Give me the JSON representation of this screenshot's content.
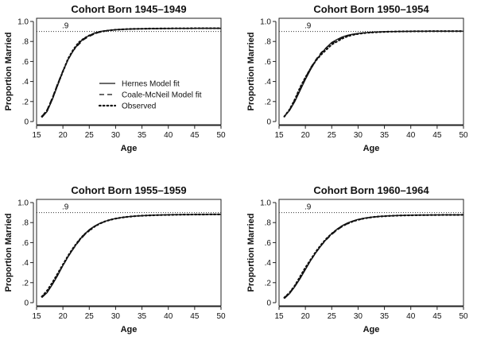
{
  "chart_data": [
    {
      "type": "line",
      "title": "Cohort Born 1945–1949",
      "xlabel": "Age",
      "ylabel": "Proportion Married",
      "xlim": [
        15,
        50
      ],
      "ylim": [
        0,
        1.0
      ],
      "x_ticks": [
        15,
        20,
        25,
        30,
        35,
        40,
        45,
        50
      ],
      "x_tick_labels": [
        "15",
        "20",
        "25",
        "30",
        "35",
        "40",
        "45",
        "50"
      ],
      "y_ticks": [
        0,
        0.2,
        0.4,
        0.6,
        0.8,
        1.0
      ],
      "y_tick_labels": [
        "0",
        ".2",
        ".4",
        ".6",
        ".8",
        "1.0"
      ],
      "reference_line": {
        "y": 0.9,
        "label": ".9"
      },
      "legend": {
        "position": "center-right",
        "entries": [
          {
            "label": "Hernes Model fit",
            "style": "solid"
          },
          {
            "label": "Coale-McNeil Model fit",
            "style": "dashed"
          },
          {
            "label": "Observed",
            "style": "dotted"
          }
        ]
      },
      "x": [
        16,
        17,
        18,
        19,
        20,
        21,
        22,
        23,
        24,
        25,
        26,
        27,
        28,
        29,
        30,
        31,
        32,
        33,
        34,
        35,
        36,
        37,
        38,
        39,
        40,
        41,
        42,
        43,
        44,
        45,
        46,
        47,
        48,
        49,
        50
      ],
      "series": [
        {
          "name": "Hernes Model fit",
          "style": "solid",
          "values": [
            0.04,
            0.1,
            0.22,
            0.36,
            0.5,
            0.62,
            0.71,
            0.78,
            0.83,
            0.86,
            0.885,
            0.9,
            0.908,
            0.914,
            0.918,
            0.921,
            0.923,
            0.925,
            0.926,
            0.927,
            0.928,
            0.929,
            0.929,
            0.93,
            0.93,
            0.93,
            0.931,
            0.931,
            0.931,
            0.931,
            0.932,
            0.932,
            0.932,
            0.932,
            0.932
          ]
        },
        {
          "name": "Coale-McNeil Model fit",
          "style": "dashed",
          "values": [
            0.05,
            0.12,
            0.24,
            0.38,
            0.51,
            0.62,
            0.71,
            0.77,
            0.82,
            0.85,
            0.875,
            0.893,
            0.905,
            0.912,
            0.917,
            0.92,
            0.922,
            0.924,
            0.925,
            0.926,
            0.927,
            0.928,
            0.928,
            0.929,
            0.929,
            0.93,
            0.93,
            0.93,
            0.93,
            0.931,
            0.931,
            0.931,
            0.931,
            0.931,
            0.931
          ]
        },
        {
          "name": "Observed",
          "style": "dotted",
          "values": [
            0.05,
            0.11,
            0.23,
            0.37,
            0.5,
            0.63,
            0.72,
            0.79,
            0.83,
            0.86,
            0.88,
            0.895,
            0.905,
            0.912,
            0.917,
            0.92,
            0.923,
            0.925,
            0.926,
            0.927,
            0.928,
            0.929,
            0.929,
            0.93,
            0.93,
            0.931,
            0.931,
            0.931,
            0.931,
            0.932,
            0.932,
            0.932,
            0.932,
            0.932,
            0.932
          ]
        }
      ]
    },
    {
      "type": "line",
      "title": "Cohort Born 1950–1954",
      "xlabel": "Age",
      "ylabel": "Proportion Married",
      "xlim": [
        15,
        50
      ],
      "ylim": [
        0,
        1.0
      ],
      "x_ticks": [
        15,
        20,
        25,
        30,
        35,
        40,
        45,
        50
      ],
      "x_tick_labels": [
        "15",
        "20",
        "25",
        "30",
        "35",
        "40",
        "45",
        "50"
      ],
      "y_ticks": [
        0,
        0.2,
        0.4,
        0.6,
        0.8,
        1.0
      ],
      "y_tick_labels": [
        "0",
        ".2",
        ".4",
        ".6",
        ".8",
        "1.0"
      ],
      "reference_line": {
        "y": 0.9,
        "label": ".9"
      },
      "x": [
        16,
        17,
        18,
        19,
        20,
        21,
        22,
        23,
        24,
        25,
        26,
        27,
        28,
        29,
        30,
        31,
        32,
        33,
        34,
        35,
        36,
        37,
        38,
        39,
        40,
        41,
        42,
        43,
        44,
        45,
        46,
        47,
        48,
        49,
        50
      ],
      "series": [
        {
          "name": "Hernes Model fit",
          "style": "solid",
          "values": [
            0.05,
            0.11,
            0.2,
            0.31,
            0.42,
            0.52,
            0.61,
            0.68,
            0.74,
            0.79,
            0.82,
            0.845,
            0.862,
            0.873,
            0.881,
            0.887,
            0.891,
            0.894,
            0.896,
            0.898,
            0.899,
            0.9,
            0.901,
            0.901,
            0.902,
            0.902,
            0.902,
            0.903,
            0.903,
            0.903,
            0.903,
            0.903,
            0.903,
            0.903,
            0.903
          ]
        },
        {
          "name": "Coale-McNeil Model fit",
          "style": "dashed",
          "values": [
            0.05,
            0.12,
            0.22,
            0.33,
            0.44,
            0.54,
            0.62,
            0.69,
            0.74,
            0.78,
            0.81,
            0.835,
            0.855,
            0.868,
            0.877,
            0.884,
            0.889,
            0.892,
            0.895,
            0.897,
            0.898,
            0.899,
            0.9,
            0.9,
            0.901,
            0.901,
            0.902,
            0.902,
            0.902,
            0.902,
            0.902,
            0.903,
            0.903,
            0.903,
            0.903
          ]
        },
        {
          "name": "Observed",
          "style": "dotted",
          "values": [
            0.05,
            0.12,
            0.22,
            0.34,
            0.44,
            0.53,
            0.61,
            0.67,
            0.72,
            0.77,
            0.8,
            0.83,
            0.852,
            0.866,
            0.876,
            0.883,
            0.888,
            0.891,
            0.894,
            0.896,
            0.898,
            0.899,
            0.9,
            0.901,
            0.901,
            0.902,
            0.902,
            0.902,
            0.903,
            0.903,
            0.903,
            0.903,
            0.903,
            0.903,
            0.903
          ]
        }
      ]
    },
    {
      "type": "line",
      "title": "Cohort Born 1955–1959",
      "xlabel": "Age",
      "ylabel": "Proportion Married",
      "xlim": [
        15,
        50
      ],
      "ylim": [
        0,
        1.0
      ],
      "x_ticks": [
        15,
        20,
        25,
        30,
        35,
        40,
        45,
        50
      ],
      "x_tick_labels": [
        "15",
        "20",
        "25",
        "30",
        "35",
        "40",
        "45",
        "50"
      ],
      "y_ticks": [
        0,
        0.2,
        0.4,
        0.6,
        0.8,
        1.0
      ],
      "y_tick_labels": [
        "0",
        ".2",
        ".4",
        ".6",
        ".8",
        "1.0"
      ],
      "reference_line": {
        "y": 0.9,
        "label": ".9"
      },
      "x": [
        16,
        17,
        18,
        19,
        20,
        21,
        22,
        23,
        24,
        25,
        26,
        27,
        28,
        29,
        30,
        31,
        32,
        33,
        34,
        35,
        36,
        37,
        38,
        39,
        40,
        41,
        42,
        43,
        44,
        45,
        46,
        47,
        48,
        49,
        50
      ],
      "series": [
        {
          "name": "Hernes Model fit",
          "style": "solid",
          "values": [
            0.05,
            0.1,
            0.18,
            0.27,
            0.37,
            0.46,
            0.54,
            0.62,
            0.68,
            0.73,
            0.765,
            0.793,
            0.813,
            0.829,
            0.841,
            0.85,
            0.857,
            0.862,
            0.866,
            0.869,
            0.872,
            0.874,
            0.875,
            0.877,
            0.878,
            0.879,
            0.879,
            0.88,
            0.88,
            0.881,
            0.881,
            0.881,
            0.882,
            0.882,
            0.882
          ]
        },
        {
          "name": "Coale-McNeil Model fit",
          "style": "dashed",
          "values": [
            0.06,
            0.11,
            0.19,
            0.28,
            0.37,
            0.46,
            0.54,
            0.61,
            0.67,
            0.72,
            0.76,
            0.79,
            0.81,
            0.827,
            0.839,
            0.848,
            0.855,
            0.861,
            0.865,
            0.868,
            0.871,
            0.873,
            0.875,
            0.876,
            0.877,
            0.878,
            0.879,
            0.879,
            0.88,
            0.88,
            0.881,
            0.881,
            0.881,
            0.881,
            0.882
          ]
        },
        {
          "name": "Observed",
          "style": "dotted",
          "values": [
            0.06,
            0.12,
            0.2,
            0.29,
            0.38,
            0.47,
            0.55,
            0.62,
            0.68,
            0.72,
            0.76,
            0.79,
            0.812,
            0.828,
            0.84,
            0.849,
            0.856,
            0.861,
            0.866,
            0.869,
            0.871,
            0.873,
            0.875,
            0.876,
            0.877,
            0.878,
            0.879,
            0.88,
            0.88,
            0.881,
            0.881,
            0.881,
            0.882,
            0.882,
            0.882
          ]
        }
      ]
    },
    {
      "type": "line",
      "title": "Cohort Born 1960–1964",
      "xlabel": "Age",
      "ylabel": "Proportion Married",
      "xlim": [
        15,
        50
      ],
      "ylim": [
        0,
        1.0
      ],
      "x_ticks": [
        15,
        20,
        25,
        30,
        35,
        40,
        45,
        50
      ],
      "x_tick_labels": [
        "15",
        "20",
        "25",
        "30",
        "35",
        "40",
        "45",
        "50"
      ],
      "y_ticks": [
        0,
        0.2,
        0.4,
        0.6,
        0.8,
        1.0
      ],
      "y_tick_labels": [
        "0",
        ".2",
        ".4",
        ".6",
        ".8",
        "1.0"
      ],
      "reference_line": {
        "y": 0.9,
        "label": ".9"
      },
      "x": [
        16,
        17,
        18,
        19,
        20,
        21,
        22,
        23,
        24,
        25,
        26,
        27,
        28,
        29,
        30,
        31,
        32,
        33,
        34,
        35,
        36,
        37,
        38,
        39,
        40,
        41,
        42,
        43,
        44,
        45,
        46,
        47,
        48,
        49,
        50
      ],
      "series": [
        {
          "name": "Hernes Model fit",
          "style": "solid",
          "values": [
            0.04,
            0.09,
            0.16,
            0.24,
            0.33,
            0.42,
            0.5,
            0.57,
            0.635,
            0.69,
            0.735,
            0.77,
            0.797,
            0.817,
            0.832,
            0.843,
            0.851,
            0.857,
            0.862,
            0.865,
            0.868,
            0.87,
            0.872,
            0.873,
            0.874,
            0.875,
            0.875,
            0.876,
            0.876,
            0.877,
            0.877,
            0.877,
            0.877,
            0.877,
            0.878
          ]
        },
        {
          "name": "Coale-McNeil Model fit",
          "style": "dashed",
          "values": [
            0.05,
            0.1,
            0.17,
            0.25,
            0.34,
            0.42,
            0.5,
            0.57,
            0.63,
            0.68,
            0.725,
            0.76,
            0.789,
            0.811,
            0.827,
            0.839,
            0.848,
            0.855,
            0.86,
            0.864,
            0.867,
            0.869,
            0.871,
            0.872,
            0.873,
            0.874,
            0.875,
            0.875,
            0.876,
            0.876,
            0.876,
            0.877,
            0.877,
            0.877,
            0.877
          ]
        },
        {
          "name": "Observed",
          "style": "dotted",
          "values": [
            0.05,
            0.1,
            0.17,
            0.26,
            0.35,
            0.43,
            0.51,
            0.58,
            0.64,
            0.69,
            0.73,
            0.765,
            0.79,
            0.812,
            0.828,
            0.84,
            0.849,
            0.856,
            0.861,
            0.864,
            0.867,
            0.869,
            0.871,
            0.872,
            0.873,
            0.874,
            0.875,
            0.875,
            0.876,
            0.876,
            0.877,
            0.877,
            0.877,
            0.877,
            0.878
          ]
        }
      ]
    }
  ]
}
